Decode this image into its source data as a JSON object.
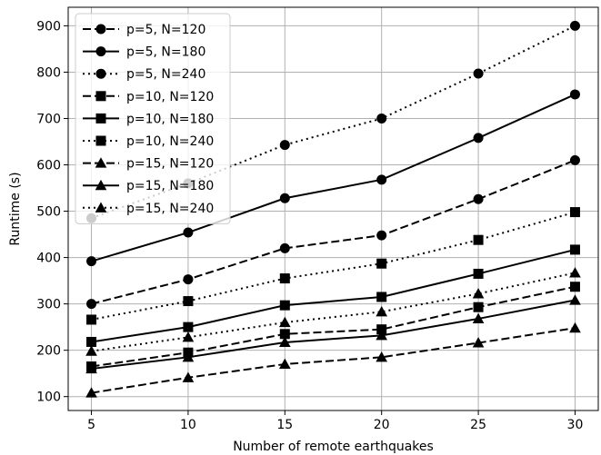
{
  "chart_data": {
    "type": "line",
    "xlabel": "Number of  remote earthquakes",
    "ylabel": "Runtime (s)",
    "x": [
      5,
      10,
      15,
      20,
      25,
      30
    ],
    "xlim": [
      3.8,
      31.2
    ],
    "ylim": [
      70,
      940
    ],
    "xticks": [
      "5",
      "10",
      "15",
      "20",
      "25",
      "30"
    ],
    "yticks": [
      "100",
      "200",
      "300",
      "400",
      "500",
      "600",
      "700",
      "800",
      "900"
    ],
    "grid": true,
    "legend_position": "top-left",
    "series": [
      {
        "name": "p=5, N=120",
        "line_style": "dashed",
        "marker": "circle",
        "values": [
          300,
          353,
          420,
          448,
          526,
          610
        ]
      },
      {
        "name": "p=5, N=180",
        "line_style": "solid",
        "marker": "circle",
        "values": [
          392,
          454,
          528,
          568,
          658,
          752
        ]
      },
      {
        "name": "p=5, N=240",
        "line_style": "dotted",
        "marker": "circle",
        "values": [
          485,
          560,
          643,
          700,
          797,
          900
        ]
      },
      {
        "name": "p=10, N=120",
        "line_style": "dashed",
        "marker": "square",
        "values": [
          165,
          195,
          235,
          245,
          293,
          337
        ]
      },
      {
        "name": "p=10, N=180",
        "line_style": "solid",
        "marker": "square",
        "values": [
          218,
          250,
          297,
          315,
          365,
          417
        ]
      },
      {
        "name": "p=10, N=240",
        "line_style": "dotted",
        "marker": "square",
        "values": [
          266,
          306,
          355,
          387,
          438,
          498
        ]
      },
      {
        "name": "p=15, N=120",
        "line_style": "dashed",
        "marker": "triangle",
        "values": [
          108,
          141,
          170,
          185,
          216,
          248
        ]
      },
      {
        "name": "p=15, N=180",
        "line_style": "solid",
        "marker": "triangle",
        "values": [
          160,
          185,
          217,
          232,
          268,
          308
        ]
      },
      {
        "name": "p=15, N=240",
        "line_style": "dotted",
        "marker": "triangle",
        "values": [
          198,
          228,
          260,
          283,
          322,
          367
        ]
      }
    ]
  },
  "colors": {
    "line": "#000000",
    "grid": "#b0b0b0",
    "legend_border": "#cccccc"
  }
}
